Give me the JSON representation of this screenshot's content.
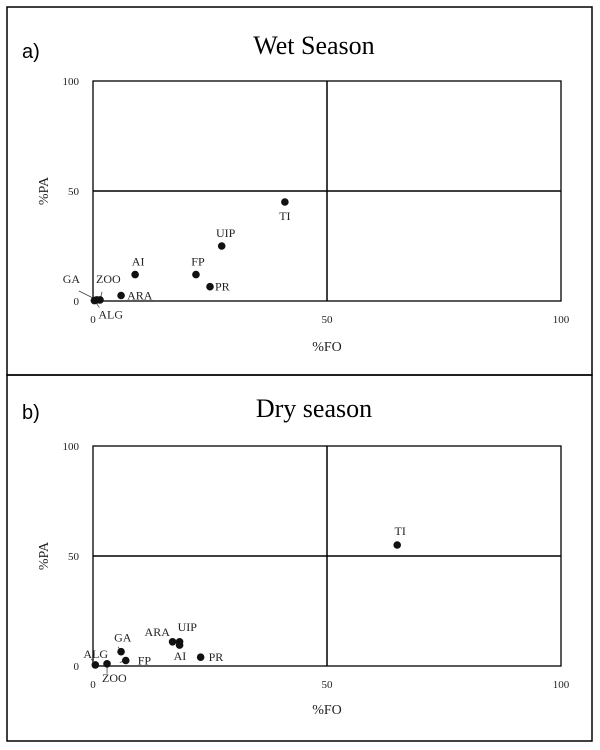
{
  "figure": {
    "panel_a_letter": "a)",
    "panel_b_letter": "b)"
  },
  "chart_data": [
    {
      "type": "scatter",
      "title": "Wet Season",
      "xlabel": "%FO",
      "ylabel": "%PA",
      "xlim": [
        0,
        100
      ],
      "ylim": [
        0,
        100
      ],
      "xticks": [
        "0",
        "50",
        "100"
      ],
      "yticks": [
        "0",
        "50",
        "100"
      ],
      "quadrant_lines": {
        "x": 50,
        "y": 50
      },
      "points": [
        {
          "label": "TI",
          "x": 41,
          "y": 45
        },
        {
          "label": "UIP",
          "x": 27.5,
          "y": 25
        },
        {
          "label": "FP",
          "x": 22,
          "y": 12
        },
        {
          "label": "PR",
          "x": 25,
          "y": 6.5
        },
        {
          "label": "AI",
          "x": 9,
          "y": 12
        },
        {
          "label": "ARA",
          "x": 6,
          "y": 2.5
        },
        {
          "label": "GA",
          "x": 0.8,
          "y": 0.5
        },
        {
          "label": "ZOO",
          "x": 1.5,
          "y": 0.5
        },
        {
          "label": "ALG",
          "x": 0.3,
          "y": 0.2
        }
      ]
    },
    {
      "type": "scatter",
      "title": "Dry season",
      "xlabel": "%FO",
      "ylabel": "%PA",
      "xlim": [
        0,
        100
      ],
      "ylim": [
        0,
        100
      ],
      "xticks": [
        "0",
        "50",
        "100"
      ],
      "yticks": [
        "0",
        "50",
        "100"
      ],
      "quadrant_lines": {
        "x": 50,
        "y": 50
      },
      "points": [
        {
          "label": "TI",
          "x": 65,
          "y": 55
        },
        {
          "label": "UIP",
          "x": 18.5,
          "y": 11
        },
        {
          "label": "ARA",
          "x": 17,
          "y": 11
        },
        {
          "label": "AI",
          "x": 18.5,
          "y": 9.5
        },
        {
          "label": "PR",
          "x": 23,
          "y": 4
        },
        {
          "label": "GA",
          "x": 6,
          "y": 6.5
        },
        {
          "label": "FP",
          "x": 7,
          "y": 2.5
        },
        {
          "label": "ZOO",
          "x": 3,
          "y": 1
        },
        {
          "label": "ALG",
          "x": 0.5,
          "y": 0.5
        }
      ]
    }
  ]
}
